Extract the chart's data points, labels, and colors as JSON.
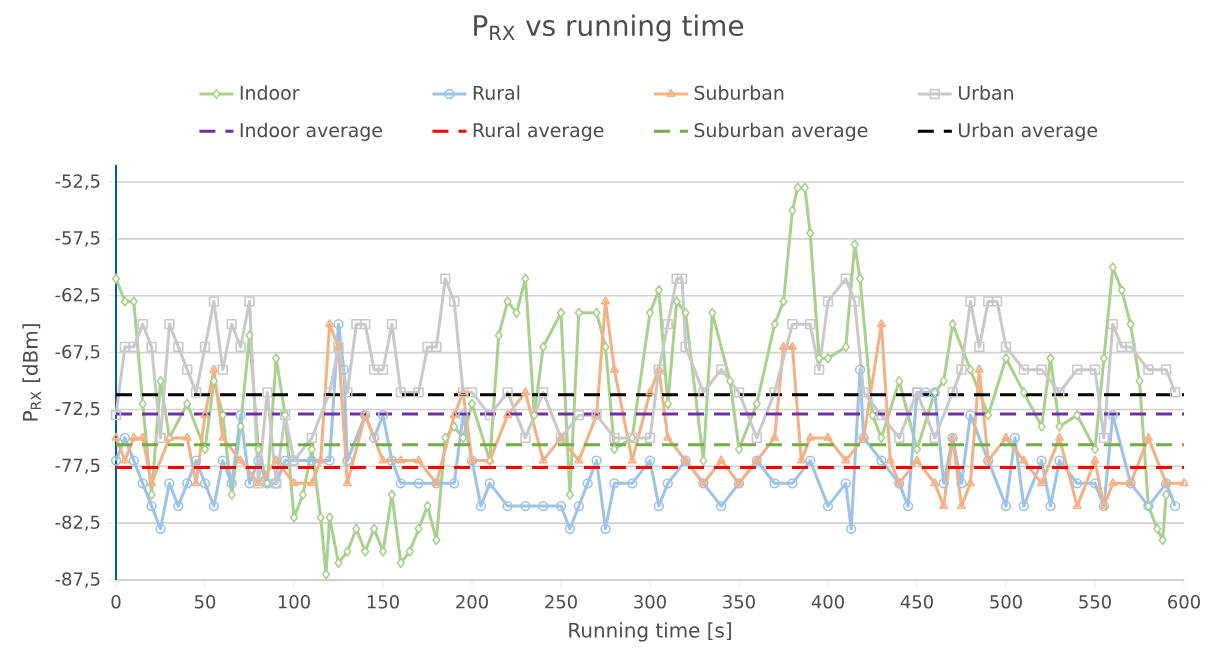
{
  "chart_data": {
    "type": "line",
    "title": "P$_{RX}$ vs running time",
    "xlabel": "Running time [s]",
    "ylabel": "P$_{RX}$ [dBm]",
    "xlim": [
      0,
      600
    ],
    "xticks": [
      0,
      50,
      100,
      150,
      200,
      250,
      300,
      350,
      400,
      450,
      500,
      550,
      600
    ],
    "ylim": [
      -87.5,
      -51
    ],
    "yticks": [
      {
        "value": -87.5,
        "label": "-87,5"
      },
      {
        "value": -82.5,
        "label": "-82,5"
      },
      {
        "value": -77.5,
        "label": "-77,5"
      },
      {
        "value": -72.5,
        "label": "-72,5"
      },
      {
        "value": -67.5,
        "label": "-67,5"
      },
      {
        "value": -62.5,
        "label": "-62,5"
      },
      {
        "value": -57.5,
        "label": "-57,5"
      },
      {
        "value": -52.5,
        "label": "-52,5"
      }
    ],
    "grid": "y",
    "legend": "top",
    "series": [
      {
        "name": "Indoor",
        "color": "#a9d18e",
        "marker": "diamond",
        "line_style": "solid",
        "x": [
          0,
          5,
          10,
          15,
          20,
          25,
          30,
          40,
          50,
          55,
          60,
          65,
          70,
          75,
          80,
          85,
          90,
          95,
          100,
          105,
          110,
          115,
          118,
          120,
          125,
          130,
          135,
          140,
          145,
          150,
          155,
          160,
          165,
          170,
          175,
          180,
          185,
          190,
          195,
          200,
          210,
          215,
          220,
          225,
          230,
          235,
          240,
          250,
          255,
          260,
          270,
          275,
          280,
          290,
          300,
          305,
          310,
          315,
          320,
          330,
          335,
          345,
          350,
          360,
          370,
          375,
          380,
          383,
          387,
          390,
          395,
          400,
          410,
          415,
          418,
          425,
          430,
          440,
          450,
          460,
          465,
          470,
          480,
          490,
          500,
          510,
          520,
          525,
          530,
          540,
          550,
          555,
          560,
          565,
          570,
          575,
          580,
          585,
          588,
          590
        ],
        "values": [
          -61,
          -63,
          -63,
          -72,
          -80,
          -70,
          -75,
          -72,
          -76,
          -70,
          -73,
          -80,
          -74,
          -66,
          -76,
          -79,
          -68,
          -73,
          -82,
          -80,
          -76,
          -82,
          -87,
          -82,
          -86,
          -85,
          -83,
          -85,
          -83,
          -85,
          -80,
          -86,
          -85,
          -83,
          -81,
          -84,
          -75,
          -74,
          -75,
          -72,
          -77,
          -66,
          -63,
          -64,
          -61,
          -73,
          -67,
          -64,
          -80,
          -64,
          -64,
          -67,
          -76,
          -75,
          -64,
          -62,
          -72,
          -63,
          -64,
          -77,
          -64,
          -70,
          -76,
          -72,
          -65,
          -63,
          -55,
          -53,
          -53,
          -57,
          -68,
          -68,
          -67,
          -58,
          -61,
          -73,
          -75,
          -70,
          -76,
          -71,
          -70,
          -65,
          -69,
          -73,
          -68,
          -71,
          -74,
          -68,
          -74,
          -73,
          -76,
          -68,
          -60,
          -62,
          -65,
          -70,
          -81,
          -83,
          -84,
          -80
        ]
      },
      {
        "name": "Rural",
        "color": "#9dc3e6",
        "marker": "circle",
        "line_style": "solid",
        "x": [
          0,
          5,
          10,
          15,
          20,
          25,
          30,
          35,
          40,
          45,
          50,
          55,
          60,
          65,
          70,
          75,
          80,
          85,
          90,
          95,
          100,
          110,
          120,
          125,
          128,
          130,
          140,
          145,
          150,
          155,
          160,
          170,
          180,
          190,
          195,
          200,
          205,
          210,
          220,
          230,
          240,
          250,
          255,
          260,
          265,
          270,
          275,
          280,
          290,
          300,
          305,
          310,
          320,
          330,
          340,
          350,
          360,
          370,
          380,
          390,
          400,
          410,
          413,
          418,
          420,
          430,
          440,
          445,
          450,
          455,
          460,
          465,
          470,
          475,
          480,
          490,
          500,
          505,
          510,
          520,
          525,
          530,
          540,
          550,
          555,
          560,
          570,
          580,
          590,
          595
        ],
        "values": [
          -77,
          -75,
          -77,
          -79,
          -81,
          -83,
          -79,
          -81,
          -79,
          -77,
          -79,
          -81,
          -77,
          -79,
          -73,
          -79,
          -77,
          -79,
          -79,
          -77,
          -77,
          -77,
          -77,
          -65,
          -69,
          -77,
          -73,
          -75,
          -73,
          -77,
          -79,
          -79,
          -79,
          -79,
          -73,
          -77,
          -81,
          -79,
          -81,
          -81,
          -81,
          -81,
          -83,
          -81,
          -79,
          -77,
          -83,
          -79,
          -79,
          -77,
          -81,
          -79,
          -77,
          -79,
          -81,
          -79,
          -77,
          -79,
          -79,
          -77,
          -81,
          -79,
          -83,
          -69,
          -75,
          -77,
          -79,
          -81,
          -71,
          -71,
          -71,
          -79,
          -75,
          -79,
          -73,
          -77,
          -81,
          -75,
          -81,
          -77,
          -81,
          -77,
          -79,
          -79,
          -81,
          -73,
          -79,
          -81,
          -79,
          -81
        ]
      },
      {
        "name": "Suburban",
        "color": "#f4b183",
        "marker": "triangle",
        "line_style": "solid",
        "x": [
          0,
          5,
          10,
          15,
          20,
          30,
          40,
          45,
          50,
          55,
          60,
          70,
          80,
          90,
          100,
          110,
          115,
          120,
          125,
          130,
          140,
          150,
          160,
          170,
          180,
          190,
          195,
          200,
          210,
          220,
          230,
          240,
          250,
          260,
          270,
          275,
          280,
          290,
          300,
          305,
          310,
          320,
          330,
          340,
          350,
          360,
          370,
          375,
          380,
          385,
          390,
          400,
          410,
          420,
          430,
          435,
          440,
          450,
          460,
          465,
          470,
          475,
          480,
          485,
          490,
          500,
          510,
          520,
          530,
          540,
          550,
          555,
          560,
          570,
          580,
          590,
          600
        ],
        "values": [
          -75,
          -77,
          -75,
          -75,
          -79,
          -75,
          -75,
          -79,
          -73,
          -69,
          -75,
          -77,
          -79,
          -77,
          -79,
          -79,
          -77,
          -65,
          -67,
          -79,
          -73,
          -77,
          -77,
          -77,
          -79,
          -73,
          -71,
          -77,
          -77,
          -73,
          -71,
          -77,
          -75,
          -77,
          -73,
          -63,
          -69,
          -77,
          -71,
          -69,
          -75,
          -77,
          -79,
          -77,
          -79,
          -77,
          -75,
          -67,
          -67,
          -77,
          -75,
          -75,
          -77,
          -75,
          -65,
          -77,
          -79,
          -77,
          -79,
          -81,
          -75,
          -81,
          -79,
          -69,
          -77,
          -75,
          -77,
          -79,
          -75,
          -81,
          -77,
          -81,
          -79,
          -79,
          -75,
          -79,
          -79
        ]
      },
      {
        "name": "Urban",
        "color": "#c9c9c9",
        "marker": "square",
        "line_style": "solid",
        "x": [
          0,
          5,
          10,
          15,
          20,
          25,
          30,
          35,
          40,
          45,
          50,
          55,
          60,
          65,
          70,
          75,
          80,
          85,
          90,
          95,
          100,
          110,
          120,
          125,
          130,
          135,
          140,
          145,
          150,
          155,
          160,
          170,
          175,
          180,
          185,
          190,
          195,
          200,
          210,
          220,
          230,
          240,
          250,
          260,
          270,
          280,
          290,
          300,
          305,
          310,
          315,
          318,
          320,
          330,
          340,
          350,
          360,
          370,
          380,
          390,
          395,
          400,
          410,
          415,
          420,
          430,
          440,
          450,
          460,
          470,
          475,
          480,
          485,
          490,
          495,
          500,
          510,
          520,
          530,
          540,
          550,
          555,
          560,
          565,
          570,
          580,
          590,
          595
        ],
        "values": [
          -73,
          -67,
          -67,
          -65,
          -67,
          -75,
          -65,
          -67,
          -69,
          -71,
          -67,
          -63,
          -69,
          -65,
          -67,
          -63,
          -79,
          -71,
          -79,
          -73,
          -77,
          -75,
          -71,
          -67,
          -71,
          -65,
          -65,
          -69,
          -69,
          -65,
          -71,
          -71,
          -67,
          -67,
          -61,
          -63,
          -71,
          -71,
          -73,
          -71,
          -75,
          -71,
          -75,
          -73,
          -73,
          -75,
          -75,
          -75,
          -69,
          -65,
          -61,
          -61,
          -67,
          -71,
          -69,
          -71,
          -75,
          -71,
          -65,
          -65,
          -69,
          -63,
          -61,
          -63,
          -71,
          -73,
          -75,
          -71,
          -75,
          -71,
          -69,
          -63,
          -67,
          -63,
          -63,
          -67,
          -69,
          -69,
          -71,
          -69,
          -69,
          -75,
          -65,
          -67,
          -67,
          -69,
          -69,
          -71
        ]
      },
      {
        "name": "Indoor average",
        "color": "#7030a0",
        "marker": "none",
        "line_style": "dashed",
        "x": [
          0,
          600
        ],
        "values": [
          -72.9,
          -72.9
        ]
      },
      {
        "name": "Rural average",
        "color": "#ff0000",
        "marker": "none",
        "line_style": "dashed",
        "x": [
          0,
          600
        ],
        "values": [
          -77.6,
          -77.6
        ]
      },
      {
        "name": "Suburban average",
        "color": "#70ad47",
        "marker": "none",
        "line_style": "dashed",
        "x": [
          0,
          600
        ],
        "values": [
          -75.6,
          -75.6
        ]
      },
      {
        "name": "Urban average",
        "color": "#000000",
        "marker": "none",
        "line_style": "dashed",
        "x": [
          0,
          600
        ],
        "values": [
          -71.2,
          -71.2
        ]
      }
    ]
  }
}
